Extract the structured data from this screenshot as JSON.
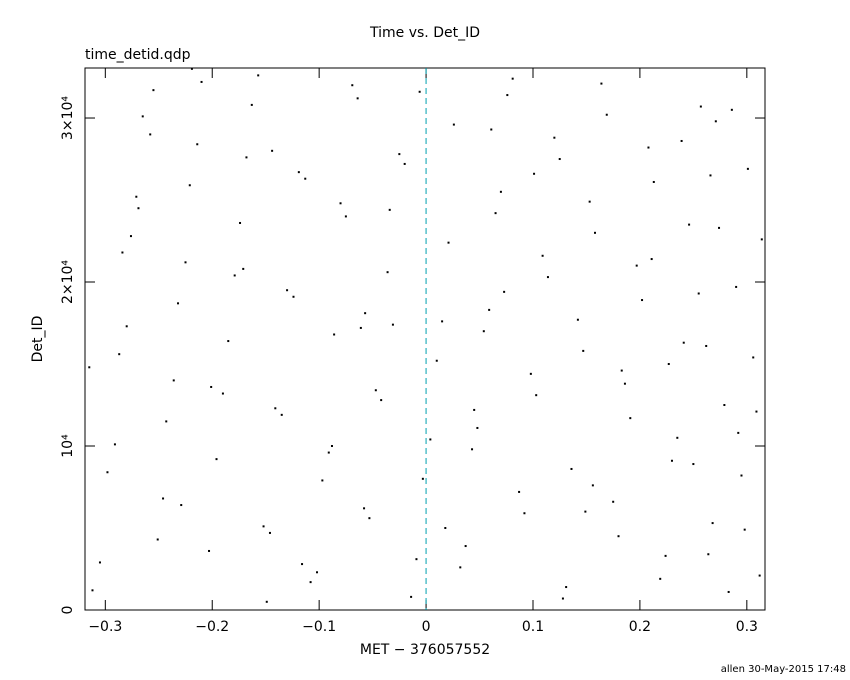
{
  "chart_data": {
    "type": "scatter",
    "title": "Time vs. Det_ID",
    "subtitle": "time_detid.qdp",
    "x_label": "MET − 376057552",
    "y_label": "Det_ID",
    "footer": "allen 30-May-2015 17:48",
    "xlim": [
      -0.319,
      0.317
    ],
    "ylim": [
      0,
      33050
    ],
    "xticks": [
      {
        "value": -0.3,
        "label": "−0.3"
      },
      {
        "value": -0.2,
        "label": "−0.2"
      },
      {
        "value": -0.1,
        "label": "−0.1"
      },
      0,
      0.1,
      0.2,
      0.3
    ],
    "yticks": [
      0,
      {
        "value": 10000,
        "label": "10⁴"
      },
      {
        "value": 20000,
        "label": "2×10⁴"
      },
      {
        "value": 30000,
        "label": "3×10⁴"
      }
    ],
    "vline": {
      "x": 0,
      "color": "#00a0b0"
    },
    "series": [
      {
        "color": "#000000",
        "x": [
          -0.312,
          -0.298,
          -0.287,
          -0.276,
          -0.265,
          -0.251,
          -0.243,
          -0.232,
          -0.221,
          -0.21,
          -0.305,
          -0.291,
          -0.28,
          -0.269,
          -0.255,
          -0.246,
          -0.236,
          -0.225,
          -0.214,
          -0.203,
          -0.196,
          -0.185,
          -0.174,
          -0.163,
          -0.152,
          -0.141,
          -0.13,
          -0.119,
          -0.108,
          -0.097,
          -0.19,
          -0.179,
          -0.168,
          -0.157,
          -0.146,
          -0.135,
          -0.124,
          -0.113,
          -0.102,
          -0.091,
          -0.086,
          -0.075,
          -0.064,
          -0.053,
          -0.042,
          -0.031,
          -0.02,
          -0.009,
          0.004,
          0.015,
          -0.08,
          -0.069,
          -0.058,
          -0.047,
          -0.036,
          -0.025,
          -0.014,
          -0.003,
          0.01,
          0.021,
          0.026,
          0.037,
          0.048,
          0.059,
          0.07,
          0.081,
          0.092,
          0.103,
          0.114,
          0.125,
          0.032,
          0.043,
          0.054,
          0.065,
          0.076,
          0.087,
          0.098,
          0.109,
          0.12,
          0.131,
          0.136,
          0.147,
          0.158,
          0.169,
          0.18,
          0.191,
          0.202,
          0.213,
          0.224,
          0.235,
          0.142,
          0.153,
          0.164,
          0.175,
          0.186,
          0.197,
          0.208,
          0.219,
          0.23,
          0.241,
          0.246,
          0.257,
          0.268,
          0.279,
          0.29,
          0.301,
          0.312,
          0.25,
          0.262,
          0.274,
          0.286,
          0.298,
          0.309,
          0.255,
          0.266,
          0.283,
          0.295,
          0.306,
          0.314,
          0.271,
          -0.315,
          -0.284,
          -0.258,
          -0.229,
          -0.201,
          -0.171,
          -0.144,
          -0.116,
          -0.088,
          -0.061,
          -0.034,
          -0.006,
          0.018,
          0.045,
          0.073,
          0.101,
          0.128,
          0.156,
          0.183,
          0.211,
          0.239,
          0.264,
          0.292,
          -0.271,
          -0.219,
          -0.149,
          -0.057,
          0.061,
          0.149,
          0.227
        ],
        "y": [
          1200,
          8400,
          15600,
          22800,
          30100,
          4300,
          11500,
          18700,
          25900,
          32200,
          2900,
          10100,
          17300,
          24500,
          31700,
          6800,
          14000,
          21200,
          28400,
          3600,
          9200,
          16400,
          23600,
          30800,
          5100,
          12300,
          19500,
          26700,
          1700,
          7900,
          13200,
          20400,
          27600,
          32600,
          4700,
          11900,
          19100,
          26300,
          2300,
          9600,
          16800,
          24000,
          31200,
          5600,
          12800,
          17400,
          27200,
          3100,
          10400,
          17600,
          24800,
          32000,
          6200,
          13400,
          20600,
          27800,
          800,
          8000,
          15200,
          22400,
          29600,
          3900,
          11100,
          18300,
          25500,
          32400,
          5900,
          13100,
          20300,
          27500,
          2600,
          9800,
          17000,
          24200,
          31400,
          7200,
          14400,
          21600,
          28800,
          1400,
          8600,
          15800,
          23000,
          30200,
          4500,
          11700,
          18900,
          26100,
          3300,
          10500,
          17700,
          24900,
          32100,
          6600,
          13800,
          21000,
          28200,
          1900,
          9100,
          16300,
          23500,
          30700,
          5300,
          12500,
          19700,
          26900,
          2100,
          8900,
          16100,
          23300,
          30500,
          4900,
          12100,
          19300,
          26500,
          1100,
          8200,
          15400,
          22600,
          29800,
          14800,
          21800,
          29000,
          6400,
          13600,
          20800,
          28000,
          2800,
          10000,
          17200,
          24400,
          31600,
          5000,
          12200,
          19400,
          26600,
          700,
          7600,
          14600,
          21400,
          28600,
          3400,
          10800,
          25200,
          33000,
          500,
          18100,
          29300,
          6000,
          15000
        ]
      }
    ]
  }
}
